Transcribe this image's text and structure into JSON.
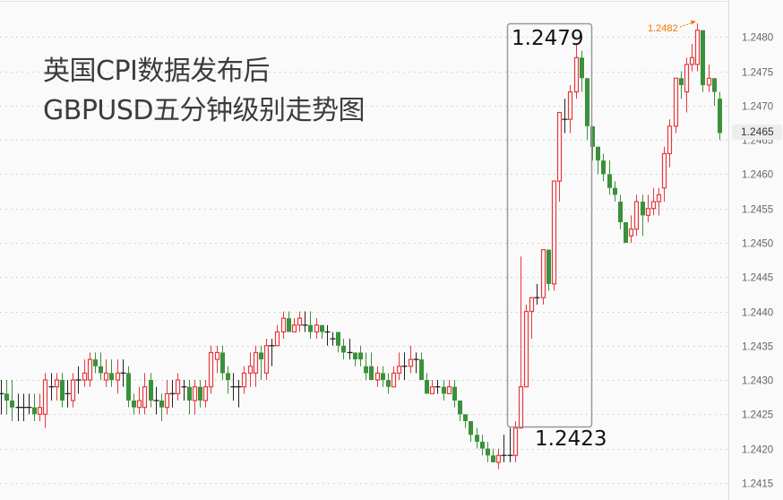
{
  "annotations": {
    "title_line1": "英国CPI数据发布后",
    "title_line2": "GBPUSD五分钟级别走势图",
    "box_high_label": "1.2479",
    "box_low_label": "1.2423",
    "session_high_label": "1.2482",
    "current_price_label": "1.2465"
  },
  "colors": {
    "up": "#e8383d",
    "down": "#3a913a",
    "doji": "#222222",
    "highlight": "#f07800",
    "grid": "#c8c8c8",
    "box": "#999999"
  },
  "chart_data": {
    "type": "candlestick",
    "title": "",
    "instrument": "GBPUSD",
    "ylim": [
      1.24125,
      1.24854
    ],
    "grid": {
      "horizontal": true,
      "vertical": false,
      "style": "dotted"
    },
    "yticks": [
      "1.2480",
      "1.2475",
      "1.2470",
      "1.2465",
      "1.2460",
      "1.2455",
      "1.2450",
      "1.2445",
      "1.2440",
      "1.2435",
      "1.2430",
      "1.2425",
      "1.2420",
      "1.2415"
    ],
    "ohlc_format": [
      "open",
      "high",
      "low",
      "close"
    ],
    "candles": [
      [
        1.2428,
        1.243,
        1.2425,
        1.2428
      ],
      [
        1.2428,
        1.243,
        1.2425,
        1.2427
      ],
      [
        1.2427,
        1.243,
        1.2424,
        1.2426
      ],
      [
        1.2426,
        1.2428,
        1.2424,
        1.2426
      ],
      [
        1.2426,
        1.2428,
        1.2424,
        1.2426
      ],
      [
        1.2426,
        1.2428,
        1.2425,
        1.2426
      ],
      [
        1.2426,
        1.2428,
        1.2424,
        1.2425
      ],
      [
        1.2425,
        1.2428,
        1.2424,
        1.2426
      ],
      [
        1.2425,
        1.2431,
        1.2423,
        1.243
      ],
      [
        1.2429,
        1.2431,
        1.2427,
        1.2429
      ],
      [
        1.2429,
        1.2431,
        1.2427,
        1.243
      ],
      [
        1.243,
        1.2431,
        1.2426,
        1.2427
      ],
      [
        1.2428,
        1.243,
        1.2426,
        1.2428
      ],
      [
        1.2427,
        1.2431,
        1.2426,
        1.243
      ],
      [
        1.243,
        1.2432,
        1.2428,
        1.243
      ],
      [
        1.243,
        1.2433,
        1.2429,
        1.2431
      ],
      [
        1.243,
        1.2434,
        1.2429,
        1.2433
      ],
      [
        1.2433,
        1.2434,
        1.2431,
        1.2432
      ],
      [
        1.2432,
        1.2434,
        1.243,
        1.2431
      ],
      [
        1.243,
        1.2433,
        1.2429,
        1.2431
      ],
      [
        1.2431,
        1.2433,
        1.2429,
        1.243
      ],
      [
        1.243,
        1.2433,
        1.2428,
        1.2431
      ],
      [
        1.2431,
        1.2433,
        1.2429,
        1.2431
      ],
      [
        1.2431,
        1.2432,
        1.2426,
        1.2427
      ],
      [
        1.2427,
        1.2428,
        1.2425,
        1.2426
      ],
      [
        1.2426,
        1.2429,
        1.2425,
        1.2427
      ],
      [
        1.2426,
        1.2431,
        1.2425,
        1.2429
      ],
      [
        1.243,
        1.2431,
        1.2426,
        1.2427
      ],
      [
        1.2427,
        1.2429,
        1.2425,
        1.2427
      ],
      [
        1.2427,
        1.2428,
        1.2424,
        1.2426
      ],
      [
        1.2426,
        1.243,
        1.2425,
        1.2428
      ],
      [
        1.2428,
        1.243,
        1.2426,
        1.2428
      ],
      [
        1.2428,
        1.2431,
        1.2427,
        1.243
      ],
      [
        1.2429,
        1.243,
        1.2427,
        1.2429
      ],
      [
        1.2429,
        1.243,
        1.2425,
        1.2427
      ],
      [
        1.2427,
        1.243,
        1.2425,
        1.2429
      ],
      [
        1.2429,
        1.243,
        1.2426,
        1.2427
      ],
      [
        1.2427,
        1.243,
        1.2426,
        1.2429
      ],
      [
        1.2429,
        1.2435,
        1.2428,
        1.2434
      ],
      [
        1.2433,
        1.2435,
        1.2431,
        1.2434
      ],
      [
        1.2434,
        1.2435,
        1.243,
        1.2431
      ],
      [
        1.2431,
        1.2432,
        1.2428,
        1.243
      ],
      [
        1.2429,
        1.2431,
        1.2427,
        1.2429
      ],
      [
        1.2429,
        1.243,
        1.2426,
        1.2429
      ],
      [
        1.2429,
        1.2432,
        1.2428,
        1.2431
      ],
      [
        1.2431,
        1.2434,
        1.2429,
        1.2432
      ],
      [
        1.2431,
        1.2435,
        1.2429,
        1.2434
      ],
      [
        1.2434,
        1.2435,
        1.243,
        1.2433
      ],
      [
        1.2431,
        1.2436,
        1.243,
        1.2435
      ],
      [
        1.2435,
        1.2436,
        1.2432,
        1.2435
      ],
      [
        1.2435,
        1.2438,
        1.2435,
        1.2437
      ],
      [
        1.2437,
        1.244,
        1.2436,
        1.2439
      ],
      [
        1.2439,
        1.244,
        1.2437,
        1.2437
      ],
      [
        1.2437,
        1.2439,
        1.2437,
        1.2438
      ],
      [
        1.2438,
        1.244,
        1.2437,
        1.2439
      ],
      [
        1.2438,
        1.244,
        1.2437,
        1.2438
      ],
      [
        1.2438,
        1.244,
        1.2436,
        1.2437
      ],
      [
        1.2437,
        1.2439,
        1.2436,
        1.2438
      ],
      [
        1.2438,
        1.2438,
        1.2436,
        1.2437
      ],
      [
        1.2437,
        1.2438,
        1.2435,
        1.2437
      ],
      [
        1.2436,
        1.2437,
        1.2435,
        1.2436
      ],
      [
        1.2437,
        1.2437,
        1.2434,
        1.2435
      ],
      [
        1.2435,
        1.2436,
        1.2433,
        1.2434
      ],
      [
        1.2434,
        1.2436,
        1.2433,
        1.2434
      ],
      [
        1.2434,
        1.2434,
        1.2432,
        1.2433
      ],
      [
        1.2434,
        1.2435,
        1.2432,
        1.2433
      ],
      [
        1.2432,
        1.2434,
        1.243,
        1.2431
      ],
      [
        1.2432,
        1.2434,
        1.243,
        1.243
      ],
      [
        1.243,
        1.2432,
        1.2429,
        1.2431
      ],
      [
        1.2431,
        1.2432,
        1.2429,
        1.243
      ],
      [
        1.243,
        1.2431,
        1.2428,
        1.2429
      ],
      [
        1.2429,
        1.2432,
        1.2429,
        1.2431
      ],
      [
        1.2431,
        1.2434,
        1.243,
        1.2432
      ],
      [
        1.2432,
        1.2434,
        1.243,
        1.2432
      ],
      [
        1.2432,
        1.2435,
        1.2431,
        1.2433
      ],
      [
        1.2433,
        1.2434,
        1.2431,
        1.2433
      ],
      [
        1.2433,
        1.2434,
        1.243,
        1.243
      ],
      [
        1.243,
        1.2431,
        1.2428,
        1.2428
      ],
      [
        1.2428,
        1.243,
        1.2428,
        1.2429
      ],
      [
        1.2429,
        1.243,
        1.2428,
        1.2429
      ],
      [
        1.2429,
        1.243,
        1.2427,
        1.2428
      ],
      [
        1.2428,
        1.243,
        1.2428,
        1.2429
      ],
      [
        1.2429,
        1.243,
        1.2426,
        1.2427
      ],
      [
        1.2427,
        1.2427,
        1.2424,
        1.2425
      ],
      [
        1.2425,
        1.2425,
        1.2423,
        1.2424
      ],
      [
        1.2424,
        1.2424,
        1.2421,
        1.2422
      ],
      [
        1.2422,
        1.2423,
        1.242,
        1.2421
      ],
      [
        1.2421,
        1.2422,
        1.2419,
        1.242
      ],
      [
        1.242,
        1.2421,
        1.2418,
        1.2419
      ],
      [
        1.2419,
        1.242,
        1.2418,
        1.2418
      ],
      [
        1.2418,
        1.242,
        1.2417,
        1.2419
      ],
      [
        1.2419,
        1.2422,
        1.2418,
        1.2419
      ],
      [
        1.2419,
        1.2423,
        1.2418,
        1.2419
      ],
      [
        1.2419,
        1.2424,
        1.2418,
        1.2423
      ],
      [
        1.2423,
        1.2448,
        1.2423,
        1.2429
      ],
      [
        1.2429,
        1.2441,
        1.2429,
        1.244
      ],
      [
        1.244,
        1.2442,
        1.2436,
        1.2442
      ],
      [
        1.2442,
        1.2444,
        1.2441,
        1.2442
      ],
      [
        1.2442,
        1.2449,
        1.2441,
        1.2449
      ],
      [
        1.2449,
        1.2449,
        1.2443,
        1.2444
      ],
      [
        1.2444,
        1.2459,
        1.2443,
        1.2459
      ],
      [
        1.2459,
        1.2469,
        1.2456,
        1.2469
      ],
      [
        1.2468,
        1.2471,
        1.2466,
        1.2468
      ],
      [
        1.2468,
        1.2473,
        1.2466,
        1.2472
      ],
      [
        1.2472,
        1.2479,
        1.2471,
        1.2477
      ],
      [
        1.2477,
        1.2478,
        1.2472,
        1.2474
      ],
      [
        1.2474,
        1.2474,
        1.2465,
        1.2467
      ],
      [
        1.2467,
        1.2467,
        1.2462,
        1.2464
      ],
      [
        1.2464,
        1.2464,
        1.246,
        1.2462
      ],
      [
        1.2462,
        1.2463,
        1.2459,
        1.246
      ],
      [
        1.246,
        1.2462,
        1.2457,
        1.2458
      ],
      [
        1.2458,
        1.2459,
        1.2456,
        1.2457
      ],
      [
        1.2456,
        1.2457,
        1.2452,
        1.2453
      ],
      [
        1.2453,
        1.2453,
        1.245,
        1.245
      ],
      [
        1.2451,
        1.2454,
        1.245,
        1.2452
      ],
      [
        1.2452,
        1.2457,
        1.2451,
        1.2456
      ],
      [
        1.2456,
        1.2457,
        1.2451,
        1.2454
      ],
      [
        1.2454,
        1.2457,
        1.2453,
        1.2455
      ],
      [
        1.2455,
        1.2458,
        1.2454,
        1.2456
      ],
      [
        1.2456,
        1.2458,
        1.2454,
        1.2457
      ],
      [
        1.2458,
        1.2464,
        1.2456,
        1.2463
      ],
      [
        1.2463,
        1.2468,
        1.2461,
        1.2467
      ],
      [
        1.2467,
        1.2474,
        1.2466,
        1.2474
      ],
      [
        1.2474,
        1.2475,
        1.2471,
        1.2473
      ],
      [
        1.2472,
        1.2477,
        1.2469,
        1.2476
      ],
      [
        1.2476,
        1.2479,
        1.2475,
        1.2477
      ],
      [
        1.2476,
        1.2482,
        1.2475,
        1.2481
      ],
      [
        1.2481,
        1.2481,
        1.2472,
        1.2473
      ],
      [
        1.2473,
        1.2476,
        1.2472,
        1.2474
      ],
      [
        1.2474,
        1.2474,
        1.247,
        1.2472
      ],
      [
        1.2471,
        1.2472,
        1.2465,
        1.2466
      ]
    ],
    "highlight_box": {
      "high": 1.2479,
      "low": 1.2423
    },
    "session_high": 1.2482,
    "current_price": 1.2465
  }
}
